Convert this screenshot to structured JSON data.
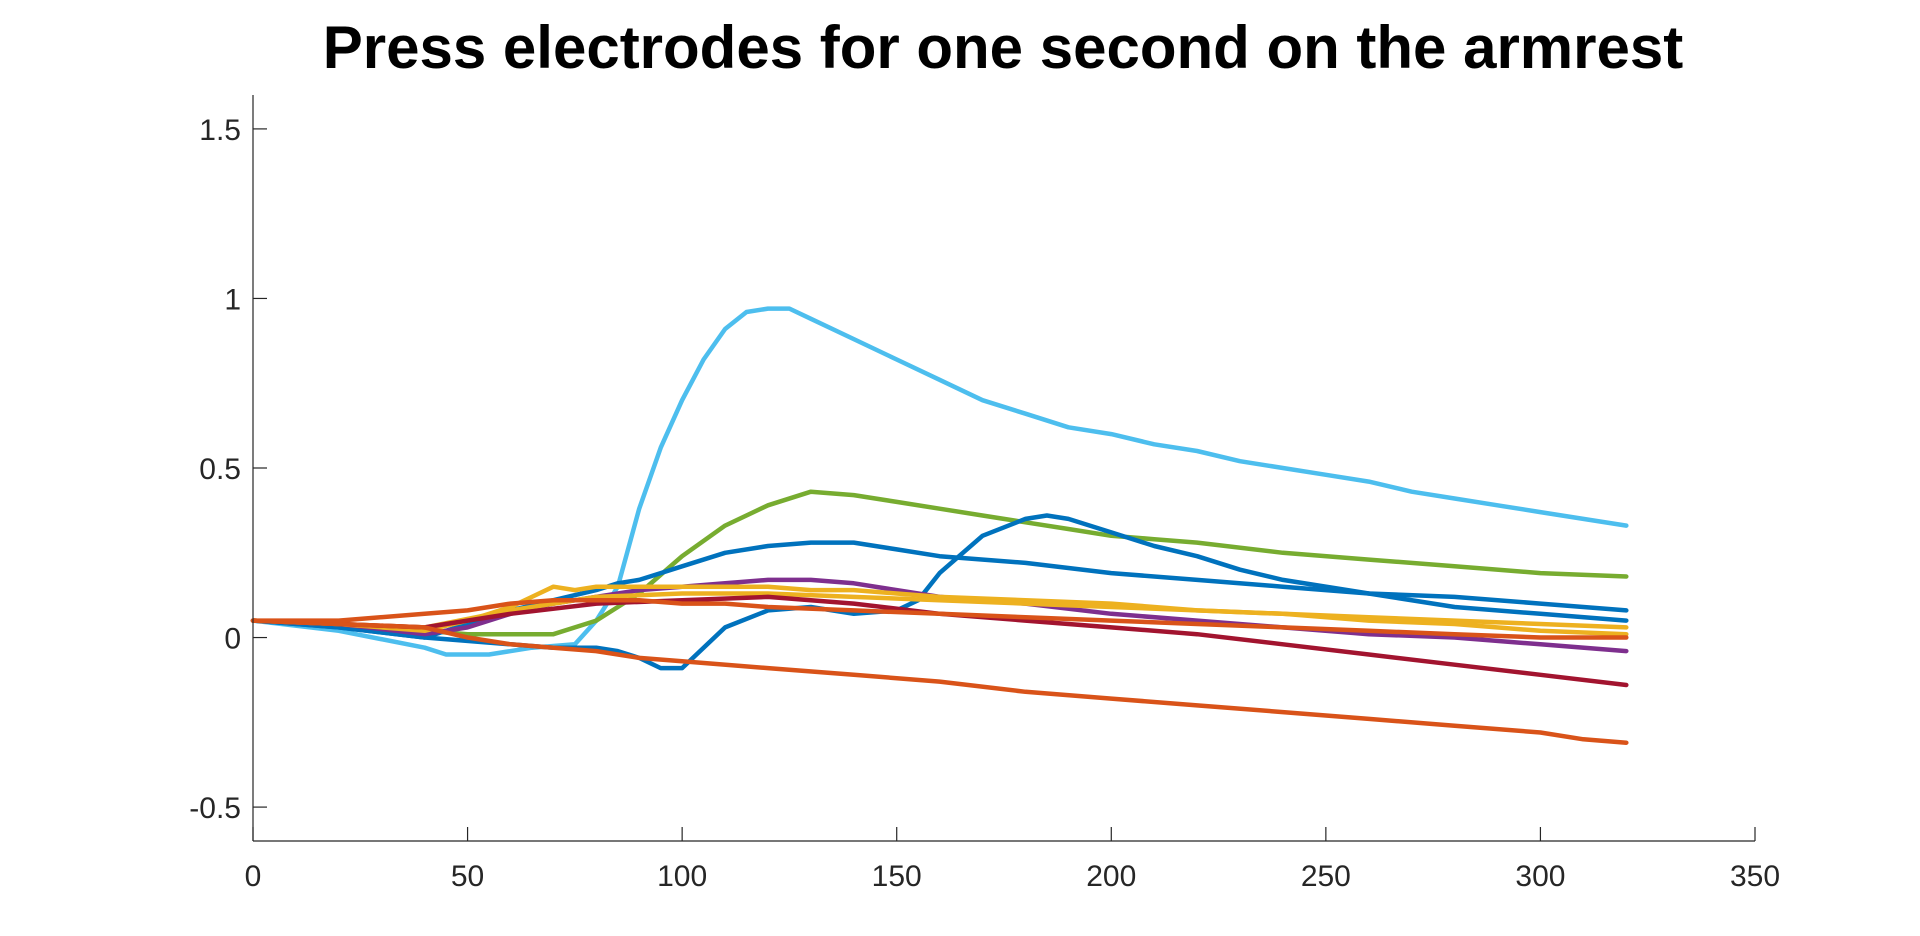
{
  "chart_data": {
    "type": "line",
    "title": "Press electrodes for one second on the armrest",
    "xlabel": "",
    "ylabel": "",
    "xlim": [
      0,
      350
    ],
    "ylim": [
      -0.6,
      1.6
    ],
    "xticks": [
      0,
      50,
      100,
      150,
      200,
      250,
      300,
      350
    ],
    "xtick_labels": [
      "0",
      "50",
      "100",
      "150",
      "200",
      "250",
      "300",
      "350"
    ],
    "yticks": [
      -0.5,
      0,
      0.5,
      1,
      1.5
    ],
    "ytick_labels": [
      "-0.5",
      "0",
      "0.5",
      "1",
      "1.5"
    ],
    "grid": false,
    "legend": "none",
    "series": [
      {
        "color": "#4DBEEE",
        "x": [
          0,
          20,
          40,
          45,
          55,
          65,
          75,
          80,
          85,
          90,
          95,
          100,
          105,
          110,
          115,
          120,
          125,
          130,
          140,
          150,
          160,
          170,
          180,
          190,
          200,
          210,
          220,
          230,
          240,
          250,
          260,
          270,
          280,
          290,
          300,
          310,
          320
        ],
        "y": [
          0.05,
          0.02,
          -0.03,
          -0.05,
          -0.05,
          -0.03,
          -0.02,
          0.05,
          0.15,
          0.38,
          0.56,
          0.7,
          0.82,
          0.91,
          0.96,
          0.97,
          0.97,
          0.94,
          0.88,
          0.82,
          0.76,
          0.7,
          0.66,
          0.62,
          0.6,
          0.57,
          0.55,
          0.52,
          0.5,
          0.48,
          0.46,
          0.43,
          0.41,
          0.39,
          0.37,
          0.35,
          0.33
        ]
      },
      {
        "color": "#77AC30",
        "x": [
          0,
          20,
          40,
          50,
          60,
          70,
          80,
          90,
          100,
          110,
          120,
          130,
          140,
          150,
          160,
          170,
          180,
          190,
          200,
          210,
          220,
          240,
          260,
          280,
          300,
          320
        ],
        "y": [
          0.05,
          0.04,
          0.02,
          0.01,
          0.01,
          0.01,
          0.05,
          0.13,
          0.24,
          0.33,
          0.39,
          0.43,
          0.42,
          0.4,
          0.38,
          0.36,
          0.34,
          0.32,
          0.3,
          0.29,
          0.28,
          0.25,
          0.23,
          0.21,
          0.19,
          0.18
        ]
      },
      {
        "color": "#0072BD",
        "x": [
          0,
          20,
          40,
          50,
          60,
          70,
          80,
          85,
          90,
          95,
          100,
          110,
          120,
          130,
          140,
          150,
          160,
          180,
          200,
          220,
          240,
          260,
          280,
          300,
          320
        ],
        "y": [
          0.05,
          0.03,
          0.0,
          0.04,
          0.08,
          0.11,
          0.14,
          0.16,
          0.17,
          0.19,
          0.21,
          0.25,
          0.27,
          0.28,
          0.28,
          0.26,
          0.24,
          0.22,
          0.19,
          0.17,
          0.15,
          0.13,
          0.12,
          0.1,
          0.08
        ]
      },
      {
        "color": "#0072BD",
        "x": [
          0,
          20,
          40,
          60,
          70,
          80,
          85,
          90,
          95,
          100,
          105,
          110,
          120,
          130,
          140,
          150,
          155,
          160,
          170,
          180,
          185,
          190,
          200,
          210,
          220,
          230,
          240,
          260,
          280,
          300,
          320
        ],
        "y": [
          0.05,
          0.03,
          0.0,
          -0.02,
          -0.03,
          -0.03,
          -0.04,
          -0.06,
          -0.09,
          -0.09,
          -0.03,
          0.03,
          0.08,
          0.09,
          0.07,
          0.08,
          0.11,
          0.19,
          0.3,
          0.35,
          0.36,
          0.35,
          0.31,
          0.27,
          0.24,
          0.2,
          0.17,
          0.13,
          0.09,
          0.07,
          0.05
        ]
      },
      {
        "color": "#7E2F8E",
        "x": [
          0,
          20,
          40,
          50,
          60,
          70,
          80,
          90,
          100,
          110,
          120,
          130,
          140,
          150,
          160,
          180,
          200,
          220,
          240,
          260,
          280,
          300,
          320
        ],
        "y": [
          0.05,
          0.04,
          0.01,
          0.03,
          0.07,
          0.1,
          0.12,
          0.14,
          0.15,
          0.16,
          0.17,
          0.17,
          0.16,
          0.14,
          0.12,
          0.1,
          0.07,
          0.05,
          0.03,
          0.01,
          0.0,
          -0.02,
          -0.04
        ]
      },
      {
        "color": "#EDB120",
        "x": [
          0,
          20,
          40,
          50,
          60,
          65,
          70,
          75,
          80,
          90,
          100,
          110,
          120,
          130,
          140,
          150,
          160,
          180,
          200,
          220,
          240,
          260,
          280,
          300,
          320
        ],
        "y": [
          0.05,
          0.04,
          0.02,
          0.05,
          0.09,
          0.12,
          0.15,
          0.14,
          0.15,
          0.15,
          0.15,
          0.15,
          0.15,
          0.14,
          0.14,
          0.13,
          0.12,
          0.11,
          0.1,
          0.08,
          0.07,
          0.06,
          0.05,
          0.04,
          0.03
        ]
      },
      {
        "color": "#EDB120",
        "x": [
          0,
          20,
          40,
          60,
          80,
          100,
          120,
          140,
          160,
          180,
          200,
          220,
          240,
          260,
          280,
          300,
          320
        ],
        "y": [
          0.05,
          0.04,
          0.03,
          0.08,
          0.12,
          0.13,
          0.13,
          0.12,
          0.11,
          0.1,
          0.09,
          0.08,
          0.07,
          0.05,
          0.04,
          0.02,
          0.01
        ]
      },
      {
        "color": "#A2142F",
        "x": [
          0,
          20,
          40,
          60,
          80,
          100,
          120,
          140,
          160,
          180,
          200,
          220,
          240,
          260,
          280,
          300,
          320
        ],
        "y": [
          0.05,
          0.04,
          0.03,
          0.07,
          0.1,
          0.11,
          0.12,
          0.1,
          0.07,
          0.05,
          0.03,
          0.01,
          -0.02,
          -0.05,
          -0.08,
          -0.11,
          -0.14
        ]
      },
      {
        "color": "#D95319",
        "x": [
          0,
          20,
          40,
          50,
          60,
          70,
          80,
          90,
          100,
          120,
          140,
          160,
          180,
          200,
          220,
          240,
          260,
          280,
          300,
          310,
          320
        ],
        "y": [
          0.05,
          0.04,
          0.03,
          0.0,
          -0.02,
          -0.03,
          -0.04,
          -0.06,
          -0.07,
          -0.09,
          -0.11,
          -0.13,
          -0.16,
          -0.18,
          -0.2,
          -0.22,
          -0.24,
          -0.26,
          -0.28,
          -0.3,
          -0.31
        ]
      },
      {
        "color": "#D95319",
        "x": [
          0,
          20,
          40,
          50,
          60,
          70,
          80,
          90,
          100,
          110,
          120,
          140,
          160,
          180,
          200,
          220,
          240,
          260,
          280,
          300,
          320
        ],
        "y": [
          0.05,
          0.05,
          0.07,
          0.08,
          0.1,
          0.11,
          0.11,
          0.11,
          0.1,
          0.1,
          0.09,
          0.08,
          0.07,
          0.06,
          0.05,
          0.04,
          0.03,
          0.02,
          0.01,
          0.0,
          0.0
        ]
      }
    ]
  }
}
